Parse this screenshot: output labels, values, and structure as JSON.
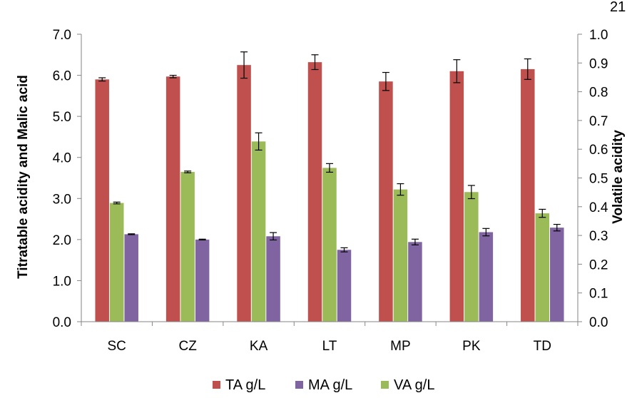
{
  "corner_text": "21",
  "chart_data": {
    "type": "bar",
    "categories": [
      "SC",
      "CZ",
      "KA",
      "LT",
      "MP",
      "PK",
      "TD"
    ],
    "ylabel": "Titratable acidity and Malic acid",
    "y2label": "Volatile acidity",
    "ylim": [
      0,
      7
    ],
    "y2lim": [
      0,
      1
    ],
    "yticks": [
      "0.0",
      "1.0",
      "2.0",
      "3.0",
      "4.0",
      "5.0",
      "6.0",
      "7.0"
    ],
    "y2ticks": [
      "0.0",
      "0.1",
      "0.2",
      "0.3",
      "0.4",
      "0.5",
      "0.6",
      "0.7",
      "0.8",
      "0.9",
      "1.0"
    ],
    "grid": false,
    "legend_position": "bottom",
    "series": [
      {
        "name": "TA g/L",
        "axis": "left",
        "color": "#c0504d",
        "values": [
          5.9,
          5.97,
          6.25,
          6.32,
          5.85,
          6.1,
          6.15
        ],
        "errors": [
          0.04,
          0.03,
          0.32,
          0.18,
          0.22,
          0.28,
          0.25
        ]
      },
      {
        "name": "VA g/L",
        "axis": "right",
        "color": "#9bbb59",
        "values": [
          0.413,
          0.521,
          0.627,
          0.535,
          0.46,
          0.451,
          0.377
        ],
        "errors": [
          0.003,
          0.003,
          0.03,
          0.015,
          0.02,
          0.023,
          0.014
        ]
      },
      {
        "name": "MA g/L",
        "axis": "left",
        "color": "#8064a2",
        "values": [
          2.13,
          2.0,
          2.08,
          1.75,
          1.94,
          2.18,
          2.29
        ],
        "errors": [
          0.01,
          0.01,
          0.09,
          0.05,
          0.07,
          0.09,
          0.08
        ]
      }
    ],
    "legend_order": [
      "TA g/L",
      "MA g/L",
      "VA g/L"
    ]
  }
}
